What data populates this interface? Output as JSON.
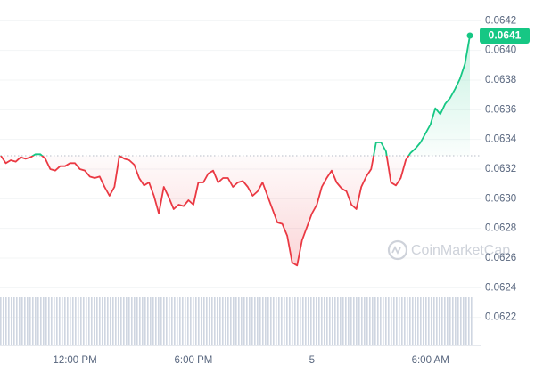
{
  "chart_data": {
    "type": "line",
    "categories": [
      null,
      null,
      null,
      null,
      null,
      null,
      null,
      null,
      null,
      null,
      null,
      null,
      null,
      null,
      null,
      "12:00 PM",
      null,
      null,
      null,
      null,
      null,
      null,
      null,
      null,
      null,
      null,
      null,
      null,
      null,
      null,
      null,
      null,
      null,
      null,
      null,
      null,
      null,
      null,
      null,
      "6:00 PM",
      null,
      null,
      null,
      null,
      null,
      null,
      null,
      null,
      null,
      null,
      null,
      null,
      null,
      null,
      null,
      null,
      null,
      null,
      null,
      null,
      null,
      null,
      null,
      "5",
      null,
      null,
      null,
      null,
      null,
      null,
      null,
      null,
      null,
      null,
      null,
      null,
      null,
      null,
      null,
      null,
      null,
      null,
      null,
      null,
      null,
      null,
      null,
      "6:00 AM",
      null,
      null,
      null,
      null,
      null,
      null,
      null,
      null
    ],
    "values": [
      0.06329,
      0.06324,
      0.06326,
      0.06325,
      0.06328,
      0.06327,
      0.06328,
      0.0633,
      0.0633,
      0.06327,
      0.0632,
      0.06319,
      0.06322,
      0.06322,
      0.06324,
      0.06324,
      0.0632,
      0.06319,
      0.06315,
      0.06314,
      0.06315,
      0.06308,
      0.06302,
      0.06308,
      0.06329,
      0.06327,
      0.06326,
      0.06323,
      0.06314,
      0.06309,
      0.06311,
      0.06302,
      0.0629,
      0.06308,
      0.06301,
      0.06293,
      0.06296,
      0.06295,
      0.06299,
      0.06296,
      0.06311,
      0.06311,
      0.06317,
      0.06319,
      0.06311,
      0.06314,
      0.06314,
      0.06308,
      0.06311,
      0.06312,
      0.06308,
      0.06302,
      0.06305,
      0.06311,
      0.06302,
      0.06293,
      0.06284,
      0.06283,
      0.06275,
      0.06257,
      0.06255,
      0.06272,
      0.06281,
      0.0629,
      0.06296,
      0.06308,
      0.06314,
      0.06319,
      0.06311,
      0.06307,
      0.06305,
      0.06296,
      0.06293,
      0.06308,
      0.06315,
      0.0632,
      0.06338,
      0.06338,
      0.06332,
      0.06311,
      0.06309,
      0.06314,
      0.06326,
      0.06331,
      0.06334,
      0.06338,
      0.06344,
      0.0635,
      0.06361,
      0.06357,
      0.06364,
      0.06368,
      0.06374,
      0.06381,
      0.06391,
      0.0641
    ],
    "reference_line": 0.06329,
    "up_color": "#16c784",
    "down_color": "#ea3943",
    "ylim": [
      0.062,
      0.06425
    ],
    "yticks": [
      0.0622,
      0.0624,
      0.0626,
      0.0628,
      {
        "value": 0.063,
        "label": "0.0630"
      },
      0.0632,
      0.0634,
      0.0636,
      0.0638,
      {
        "value": 0.064,
        "label": "0.0640"
      },
      0.0642
    ],
    "grid": true,
    "watermark": "CoinMarketCap"
  }
}
